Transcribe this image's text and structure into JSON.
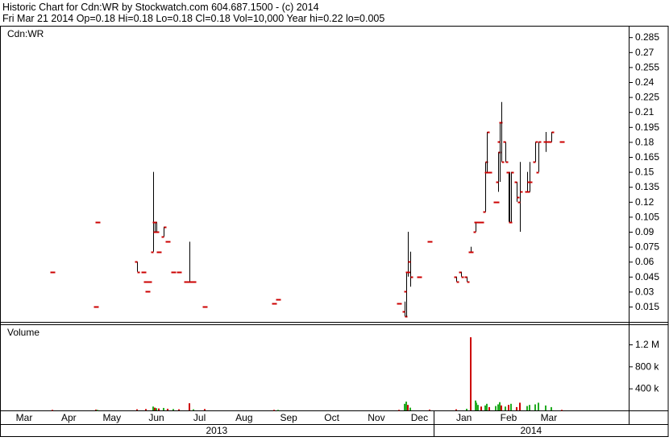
{
  "header": {
    "line1": "Historic Chart for Cdn:WR by Stockwatch.com 604.687.1500 - (c) 2014",
    "line2": "Fri Mar 21 2014  Op=0.18  Hi=0.18  Lo=0.18  Cl=0.18  Vol=10,000  Year hi=0.22  lo=0.005"
  },
  "colors": {
    "bar_up": "#000000",
    "bar_tick": "#cc0000",
    "volume_up": "#22aa22",
    "volume_down": "#cc0000"
  },
  "chart_data": [
    {
      "type": "ohlc",
      "panel": "price",
      "title": "Cdn:WR",
      "ylim": [
        0.005,
        0.295
      ],
      "y_ticks": [
        "0.015",
        "0.03",
        "0.045",
        "0.06",
        "0.075",
        "0.09",
        "0.105",
        "0.12",
        "0.135",
        "0.15",
        "0.165",
        "0.18",
        "0.195",
        "0.21",
        "0.225",
        "0.24",
        "0.255",
        "0.27",
        "0.285"
      ],
      "x_ticks": [
        "Mar",
        "Apr",
        "May",
        "Jun",
        "Jul",
        "Aug",
        "Sep",
        "Oct",
        "Nov",
        "Dec",
        "Jan",
        "Feb",
        "Mar"
      ],
      "x_years": [
        "2013",
        "2014"
      ],
      "grid": false,
      "bars": [
        {
          "date": "2013-04-01",
          "o": 0.05,
          "h": 0.05,
          "l": 0.05,
          "c": 0.05
        },
        {
          "date": "2013-05-01",
          "o": 0.015,
          "h": 0.015,
          "l": 0.015,
          "c": 0.015
        },
        {
          "date": "2013-05-02",
          "o": 0.1,
          "h": 0.1,
          "l": 0.1,
          "c": 0.1
        },
        {
          "date": "2013-05-30",
          "o": 0.06,
          "h": 0.06,
          "l": 0.05,
          "c": 0.05
        },
        {
          "date": "2013-06-03",
          "o": 0.05,
          "h": 0.05,
          "l": 0.05,
          "c": 0.05
        },
        {
          "date": "2013-06-05",
          "o": 0.04,
          "h": 0.04,
          "l": 0.04,
          "c": 0.04
        },
        {
          "date": "2013-06-06",
          "o": 0.03,
          "h": 0.03,
          "l": 0.03,
          "c": 0.03
        },
        {
          "date": "2013-06-07",
          "o": 0.04,
          "h": 0.04,
          "l": 0.04,
          "c": 0.04
        },
        {
          "date": "2013-06-10",
          "o": 0.07,
          "h": 0.15,
          "l": 0.07,
          "c": 0.09
        },
        {
          "date": "2013-06-11",
          "o": 0.1,
          "h": 0.1,
          "l": 0.09,
          "c": 0.09
        },
        {
          "date": "2013-06-12",
          "o": 0.1,
          "h": 0.1,
          "l": 0.09,
          "c": 0.09
        },
        {
          "date": "2013-06-14",
          "o": 0.07,
          "h": 0.07,
          "l": 0.07,
          "c": 0.07
        },
        {
          "date": "2013-06-17",
          "o": 0.085,
          "h": 0.095,
          "l": 0.085,
          "c": 0.095
        },
        {
          "date": "2013-06-20",
          "o": 0.08,
          "h": 0.08,
          "l": 0.08,
          "c": 0.08
        },
        {
          "date": "2013-06-24",
          "o": 0.05,
          "h": 0.05,
          "l": 0.05,
          "c": 0.05
        },
        {
          "date": "2013-06-28",
          "o": 0.05,
          "h": 0.05,
          "l": 0.05,
          "c": 0.05
        },
        {
          "date": "2013-07-03",
          "o": 0.04,
          "h": 0.04,
          "l": 0.04,
          "c": 0.04
        },
        {
          "date": "2013-07-05",
          "o": 0.04,
          "h": 0.08,
          "l": 0.04,
          "c": 0.04
        },
        {
          "date": "2013-07-08",
          "o": 0.04,
          "h": 0.04,
          "l": 0.04,
          "c": 0.04
        },
        {
          "date": "2013-07-16",
          "o": 0.015,
          "h": 0.015,
          "l": 0.015,
          "c": 0.015
        },
        {
          "date": "2013-09-02",
          "o": 0.018,
          "h": 0.018,
          "l": 0.018,
          "c": 0.018
        },
        {
          "date": "2013-09-05",
          "o": 0.022,
          "h": 0.022,
          "l": 0.022,
          "c": 0.022
        },
        {
          "date": "2013-11-28",
          "o": 0.018,
          "h": 0.018,
          "l": 0.018,
          "c": 0.018
        },
        {
          "date": "2013-12-02",
          "o": 0.01,
          "h": 0.02,
          "l": 0.005,
          "c": 0.005
        },
        {
          "date": "2013-12-03",
          "o": 0.03,
          "h": 0.05,
          "l": 0.005,
          "c": 0.05
        },
        {
          "date": "2013-12-04",
          "o": 0.05,
          "h": 0.09,
          "l": 0.045,
          "c": 0.05
        },
        {
          "date": "2013-12-06",
          "o": 0.06,
          "h": 0.07,
          "l": 0.035,
          "c": 0.045
        },
        {
          "date": "2013-12-12",
          "o": 0.045,
          "h": 0.045,
          "l": 0.045,
          "c": 0.045
        },
        {
          "date": "2013-12-19",
          "o": 0.08,
          "h": 0.08,
          "l": 0.08,
          "c": 0.08
        },
        {
          "date": "2014-01-07",
          "o": 0.045,
          "h": 0.045,
          "l": 0.04,
          "c": 0.04
        },
        {
          "date": "2014-01-10",
          "o": 0.05,
          "h": 0.05,
          "l": 0.045,
          "c": 0.045
        },
        {
          "date": "2014-01-14",
          "o": 0.045,
          "h": 0.045,
          "l": 0.04,
          "c": 0.04
        },
        {
          "date": "2014-01-17",
          "o": 0.07,
          "h": 0.075,
          "l": 0.07,
          "c": 0.07
        },
        {
          "date": "2014-01-20",
          "o": 0.09,
          "h": 0.1,
          "l": 0.09,
          "c": 0.1
        },
        {
          "date": "2014-01-21",
          "o": 0.1,
          "h": 0.1,
          "l": 0.1,
          "c": 0.1
        },
        {
          "date": "2014-01-22",
          "o": 0.1,
          "h": 0.1,
          "l": 0.1,
          "c": 0.1
        },
        {
          "date": "2014-01-23",
          "o": 0.1,
          "h": 0.1,
          "l": 0.1,
          "c": 0.1
        },
        {
          "date": "2014-01-24",
          "o": 0.1,
          "h": 0.1,
          "l": 0.1,
          "c": 0.1
        },
        {
          "date": "2014-01-27",
          "o": 0.11,
          "h": 0.16,
          "l": 0.11,
          "c": 0.16
        },
        {
          "date": "2014-01-28",
          "o": 0.15,
          "h": 0.19,
          "l": 0.15,
          "c": 0.19
        },
        {
          "date": "2014-01-30",
          "o": 0.15,
          "h": 0.15,
          "l": 0.15,
          "c": 0.15
        },
        {
          "date": "2014-02-03",
          "o": 0.12,
          "h": 0.12,
          "l": 0.12,
          "c": 0.12
        },
        {
          "date": "2014-02-04",
          "o": 0.12,
          "h": 0.12,
          "l": 0.12,
          "c": 0.12
        },
        {
          "date": "2014-02-05",
          "o": 0.14,
          "h": 0.17,
          "l": 0.13,
          "c": 0.17
        },
        {
          "date": "2014-02-06",
          "o": 0.18,
          "h": 0.2,
          "l": 0.14,
          "c": 0.2
        },
        {
          "date": "2014-02-07",
          "o": 0.2,
          "h": 0.22,
          "l": 0.16,
          "c": 0.16
        },
        {
          "date": "2014-02-10",
          "o": 0.18,
          "h": 0.18,
          "l": 0.16,
          "c": 0.16
        },
        {
          "date": "2014-02-12",
          "o": 0.15,
          "h": 0.15,
          "l": 0.1,
          "c": 0.1
        },
        {
          "date": "2014-02-13",
          "o": 0.15,
          "h": 0.15,
          "l": 0.1,
          "c": 0.1
        },
        {
          "date": "2014-02-14",
          "o": 0.1,
          "h": 0.15,
          "l": 0.1,
          "c": 0.15
        },
        {
          "date": "2014-02-18",
          "o": 0.14,
          "h": 0.14,
          "l": 0.12,
          "c": 0.125
        },
        {
          "date": "2014-02-20",
          "o": 0.12,
          "h": 0.16,
          "l": 0.09,
          "c": 0.13
        },
        {
          "date": "2014-02-25",
          "o": 0.13,
          "h": 0.15,
          "l": 0.13,
          "c": 0.13
        },
        {
          "date": "2014-02-27",
          "o": 0.14,
          "h": 0.16,
          "l": 0.13,
          "c": 0.14
        },
        {
          "date": "2014-03-03",
          "o": 0.16,
          "h": 0.18,
          "l": 0.16,
          "c": 0.18
        },
        {
          "date": "2014-03-05",
          "o": 0.15,
          "h": 0.18,
          "l": 0.15,
          "c": 0.18
        },
        {
          "date": "2014-03-10",
          "o": 0.18,
          "h": 0.19,
          "l": 0.17,
          "c": 0.18
        },
        {
          "date": "2014-03-12",
          "o": 0.18,
          "h": 0.18,
          "l": 0.18,
          "c": 0.18
        },
        {
          "date": "2014-03-14",
          "o": 0.18,
          "h": 0.19,
          "l": 0.18,
          "c": 0.19
        },
        {
          "date": "2014-03-21",
          "o": 0.18,
          "h": 0.18,
          "l": 0.18,
          "c": 0.18
        }
      ]
    },
    {
      "type": "bar",
      "panel": "volume",
      "title": "Volume",
      "ylim": [
        0,
        1400000
      ],
      "y_ticks": [
        "400 k",
        "800 k",
        "1.2 M"
      ],
      "bars": [
        {
          "date": "2013-04-01",
          "v": 10000,
          "dir": "down"
        },
        {
          "date": "2013-05-01",
          "v": 15000,
          "dir": "down"
        },
        {
          "date": "2013-05-02",
          "v": 10000,
          "dir": "up"
        },
        {
          "date": "2013-05-30",
          "v": 20000,
          "dir": "down"
        },
        {
          "date": "2013-06-05",
          "v": 25000,
          "dir": "down"
        },
        {
          "date": "2013-06-10",
          "v": 70000,
          "dir": "up"
        },
        {
          "date": "2013-06-11",
          "v": 50000,
          "dir": "down"
        },
        {
          "date": "2013-06-12",
          "v": 40000,
          "dir": "up"
        },
        {
          "date": "2013-06-14",
          "v": 35000,
          "dir": "down"
        },
        {
          "date": "2013-06-17",
          "v": 45000,
          "dir": "up"
        },
        {
          "date": "2013-06-20",
          "v": 30000,
          "dir": "down"
        },
        {
          "date": "2013-06-24",
          "v": 25000,
          "dir": "up"
        },
        {
          "date": "2013-06-28",
          "v": 20000,
          "dir": "down"
        },
        {
          "date": "2013-07-05",
          "v": 130000,
          "dir": "down"
        },
        {
          "date": "2013-07-08",
          "v": 20000,
          "dir": "up"
        },
        {
          "date": "2013-07-16",
          "v": 25000,
          "dir": "down"
        },
        {
          "date": "2013-09-02",
          "v": 10000,
          "dir": "down"
        },
        {
          "date": "2013-09-05",
          "v": 10000,
          "dir": "up"
        },
        {
          "date": "2013-11-28",
          "v": 10000,
          "dir": "down"
        },
        {
          "date": "2013-12-02",
          "v": 120000,
          "dir": "up"
        },
        {
          "date": "2013-12-03",
          "v": 160000,
          "dir": "up"
        },
        {
          "date": "2013-12-04",
          "v": 100000,
          "dir": "down"
        },
        {
          "date": "2013-12-06",
          "v": 50000,
          "dir": "up"
        },
        {
          "date": "2013-12-19",
          "v": 15000,
          "dir": "down"
        },
        {
          "date": "2014-01-07",
          "v": 20000,
          "dir": "down"
        },
        {
          "date": "2014-01-14",
          "v": 30000,
          "dir": "up"
        },
        {
          "date": "2014-01-17",
          "v": 1330000,
          "dir": "down"
        },
        {
          "date": "2014-01-20",
          "v": 180000,
          "dir": "up"
        },
        {
          "date": "2014-01-21",
          "v": 140000,
          "dir": "up"
        },
        {
          "date": "2014-01-22",
          "v": 100000,
          "dir": "up"
        },
        {
          "date": "2014-01-24",
          "v": 70000,
          "dir": "down"
        },
        {
          "date": "2014-01-27",
          "v": 90000,
          "dir": "up"
        },
        {
          "date": "2014-01-28",
          "v": 120000,
          "dir": "up"
        },
        {
          "date": "2014-01-30",
          "v": 60000,
          "dir": "down"
        },
        {
          "date": "2014-02-03",
          "v": 80000,
          "dir": "up"
        },
        {
          "date": "2014-02-05",
          "v": 110000,
          "dir": "up"
        },
        {
          "date": "2014-02-06",
          "v": 150000,
          "dir": "up"
        },
        {
          "date": "2014-02-07",
          "v": 90000,
          "dir": "down"
        },
        {
          "date": "2014-02-10",
          "v": 70000,
          "dir": "up"
        },
        {
          "date": "2014-02-12",
          "v": 100000,
          "dir": "down"
        },
        {
          "date": "2014-02-14",
          "v": 120000,
          "dir": "up"
        },
        {
          "date": "2014-02-18",
          "v": 60000,
          "dir": "down"
        },
        {
          "date": "2014-02-20",
          "v": 140000,
          "dir": "down"
        },
        {
          "date": "2014-02-25",
          "v": 80000,
          "dir": "up"
        },
        {
          "date": "2014-02-27",
          "v": 100000,
          "dir": "up"
        },
        {
          "date": "2014-03-03",
          "v": 110000,
          "dir": "up"
        },
        {
          "date": "2014-03-05",
          "v": 140000,
          "dir": "up"
        },
        {
          "date": "2014-03-10",
          "v": 90000,
          "dir": "up"
        },
        {
          "date": "2014-03-14",
          "v": 60000,
          "dir": "up"
        },
        {
          "date": "2014-03-21",
          "v": 10000,
          "dir": "down"
        }
      ]
    }
  ]
}
